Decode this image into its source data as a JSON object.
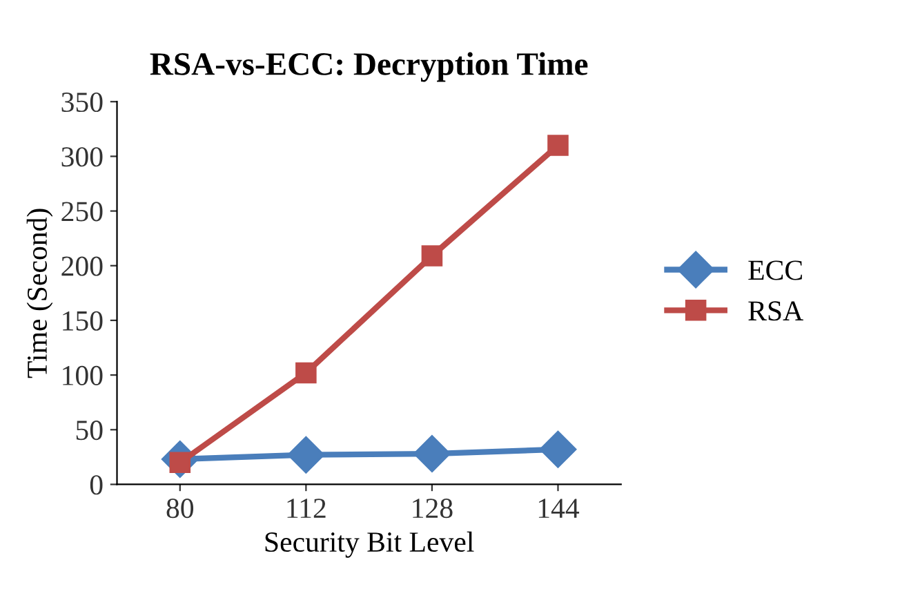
{
  "chart_data": {
    "type": "line",
    "title": "RSA-vs-ECC: Decryption Time",
    "xlabel": "Security Bit Level",
    "ylabel": "Time (Second)",
    "categories": [
      "80",
      "112",
      "128",
      "144"
    ],
    "series": [
      {
        "name": "ECC",
        "color": "#4a7ebb",
        "marker": "diamond",
        "values": [
          23,
          27,
          28,
          32
        ]
      },
      {
        "name": "RSA",
        "color": "#be4b48",
        "marker": "square",
        "values": [
          20,
          102,
          209,
          310
        ]
      }
    ],
    "ylim": [
      0,
      350
    ],
    "yticks": [
      0,
      50,
      100,
      150,
      200,
      250,
      300,
      350
    ],
    "grid": false,
    "legend": "right",
    "line_style": "solid"
  }
}
